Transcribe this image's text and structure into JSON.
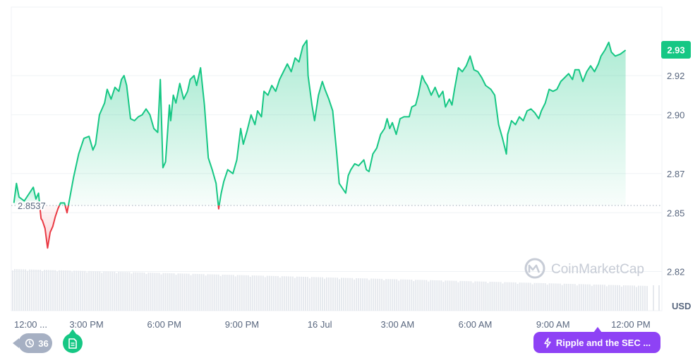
{
  "chart_data": {
    "type": "area",
    "currency_unit": "USD",
    "current_price_label": "2.93",
    "baseline_label": "2.8537",
    "baseline": 2.8537,
    "ylim": [
      2.8,
      2.955
    ],
    "y_ticks": [
      {
        "value": 2.92,
        "label": "2.92"
      },
      {
        "value": 2.9,
        "label": "2.90"
      },
      {
        "value": 2.87,
        "label": "2.87"
      },
      {
        "value": 2.85,
        "label": "2.85"
      },
      {
        "value": 2.82,
        "label": "2.82"
      }
    ],
    "x_ticks": [
      {
        "t": 0.0,
        "label": "12:00 ..."
      },
      {
        "t": 2.8,
        "label": "3:00 PM"
      },
      {
        "t": 5.8,
        "label": "6:00 PM"
      },
      {
        "t": 8.8,
        "label": "9:00 PM"
      },
      {
        "t": 11.8,
        "label": "16 Jul"
      },
      {
        "t": 14.8,
        "label": "3:00 AM"
      },
      {
        "t": 17.8,
        "label": "6:00 AM"
      },
      {
        "t": 20.8,
        "label": "9:00 AM"
      },
      {
        "t": 23.8,
        "label": "12:00 PM"
      }
    ],
    "x_range_hours": [
      -0.1,
      25.0
    ],
    "series": [
      {
        "points": [
          [
            0.0,
            2.855
          ],
          [
            0.1,
            2.865
          ],
          [
            0.2,
            2.858
          ],
          [
            0.4,
            2.856
          ],
          [
            0.6,
            2.86
          ],
          [
            0.75,
            2.863
          ],
          [
            0.85,
            2.857
          ],
          [
            0.95,
            2.86
          ],
          [
            1.05,
            2.847
          ],
          [
            1.1,
            2.846
          ],
          [
            1.2,
            2.842
          ],
          [
            1.3,
            2.832
          ],
          [
            1.4,
            2.84
          ],
          [
            1.5,
            2.843
          ],
          [
            1.6,
            2.848
          ],
          [
            1.7,
            2.852
          ],
          [
            1.8,
            2.855
          ],
          [
            1.95,
            2.855
          ],
          [
            2.05,
            2.85
          ],
          [
            2.15,
            2.857
          ],
          [
            2.3,
            2.868
          ],
          [
            2.5,
            2.88
          ],
          [
            2.7,
            2.888
          ],
          [
            2.9,
            2.889
          ],
          [
            3.05,
            2.882
          ],
          [
            3.15,
            2.885
          ],
          [
            3.3,
            2.9
          ],
          [
            3.5,
            2.906
          ],
          [
            3.6,
            2.913
          ],
          [
            3.75,
            2.908
          ],
          [
            3.9,
            2.914
          ],
          [
            4.05,
            2.912
          ],
          [
            4.15,
            2.918
          ],
          [
            4.25,
            2.92
          ],
          [
            4.35,
            2.915
          ],
          [
            4.5,
            2.898
          ],
          [
            4.65,
            2.897
          ],
          [
            4.8,
            2.899
          ],
          [
            4.95,
            2.9
          ],
          [
            5.1,
            2.903
          ],
          [
            5.25,
            2.9
          ],
          [
            5.4,
            2.893
          ],
          [
            5.55,
            2.891
          ],
          [
            5.65,
            2.918
          ],
          [
            5.75,
            2.873
          ],
          [
            5.85,
            2.876
          ],
          [
            6.0,
            2.905
          ],
          [
            6.05,
            2.897
          ],
          [
            6.15,
            2.91
          ],
          [
            6.25,
            2.906
          ],
          [
            6.4,
            2.916
          ],
          [
            6.55,
            2.908
          ],
          [
            6.7,
            2.912
          ],
          [
            6.8,
            2.918
          ],
          [
            6.95,
            2.92
          ],
          [
            7.05,
            2.915
          ],
          [
            7.2,
            2.924
          ],
          [
            7.35,
            2.905
          ],
          [
            7.5,
            2.878
          ],
          [
            7.65,
            2.872
          ],
          [
            7.8,
            2.865
          ],
          [
            7.9,
            2.852
          ],
          [
            8.0,
            2.86
          ],
          [
            8.1,
            2.866
          ],
          [
            8.25,
            2.872
          ],
          [
            8.45,
            2.87
          ],
          [
            8.6,
            2.877
          ],
          [
            8.75,
            2.893
          ],
          [
            8.85,
            2.885
          ],
          [
            9.0,
            2.892
          ],
          [
            9.15,
            2.9
          ],
          [
            9.3,
            2.895
          ],
          [
            9.4,
            2.902
          ],
          [
            9.55,
            2.899
          ],
          [
            9.65,
            2.912
          ],
          [
            9.8,
            2.91
          ],
          [
            9.95,
            2.915
          ],
          [
            10.1,
            2.912
          ],
          [
            10.25,
            2.918
          ],
          [
            10.4,
            2.922
          ],
          [
            10.55,
            2.926
          ],
          [
            10.7,
            2.922
          ],
          [
            10.85,
            2.929
          ],
          [
            11.0,
            2.927
          ],
          [
            11.15,
            2.935
          ],
          [
            11.3,
            2.938
          ],
          [
            11.35,
            2.92
          ],
          [
            11.5,
            2.905
          ],
          [
            11.6,
            2.897
          ],
          [
            11.75,
            2.91
          ],
          [
            11.9,
            2.917
          ],
          [
            12.0,
            2.913
          ],
          [
            12.15,
            2.908
          ],
          [
            12.3,
            2.902
          ],
          [
            12.45,
            2.881
          ],
          [
            12.55,
            2.865
          ],
          [
            12.7,
            2.862
          ],
          [
            12.8,
            2.86
          ],
          [
            12.9,
            2.869
          ],
          [
            13.0,
            2.872
          ],
          [
            13.15,
            2.875
          ],
          [
            13.3,
            2.874
          ],
          [
            13.5,
            2.877
          ],
          [
            13.6,
            2.872
          ],
          [
            13.7,
            2.871
          ],
          [
            13.85,
            2.88
          ],
          [
            14.0,
            2.883
          ],
          [
            14.15,
            2.89
          ],
          [
            14.3,
            2.893
          ],
          [
            14.4,
            2.898
          ],
          [
            14.5,
            2.893
          ],
          [
            14.6,
            2.896
          ],
          [
            14.75,
            2.89
          ],
          [
            14.9,
            2.898
          ],
          [
            15.05,
            2.899
          ],
          [
            15.25,
            2.899
          ],
          [
            15.35,
            2.904
          ],
          [
            15.5,
            2.905
          ],
          [
            15.6,
            2.91
          ],
          [
            15.75,
            2.92
          ],
          [
            15.85,
            2.917
          ],
          [
            15.95,
            2.915
          ],
          [
            16.1,
            2.91
          ],
          [
            16.25,
            2.914
          ],
          [
            16.4,
            2.909
          ],
          [
            16.55,
            2.912
          ],
          [
            16.65,
            2.904
          ],
          [
            16.8,
            2.908
          ],
          [
            16.9,
            2.905
          ],
          [
            17.0,
            2.913
          ],
          [
            17.15,
            2.924
          ],
          [
            17.3,
            2.922
          ],
          [
            17.45,
            2.925
          ],
          [
            17.6,
            2.93
          ],
          [
            17.75,
            2.923
          ],
          [
            17.9,
            2.922
          ],
          [
            18.05,
            2.919
          ],
          [
            18.2,
            2.915
          ],
          [
            18.4,
            2.913
          ],
          [
            18.55,
            2.91
          ],
          [
            18.7,
            2.895
          ],
          [
            18.85,
            2.888
          ],
          [
            19.0,
            2.88
          ],
          [
            19.05,
            2.89
          ],
          [
            19.2,
            2.897
          ],
          [
            19.35,
            2.895
          ],
          [
            19.5,
            2.899
          ],
          [
            19.65,
            2.897
          ],
          [
            19.8,
            2.902
          ],
          [
            19.95,
            2.903
          ],
          [
            20.1,
            2.901
          ],
          [
            20.25,
            2.898
          ],
          [
            20.35,
            2.902
          ],
          [
            20.5,
            2.906
          ],
          [
            20.65,
            2.913
          ],
          [
            20.8,
            2.912
          ],
          [
            20.95,
            2.913
          ],
          [
            21.1,
            2.917
          ],
          [
            21.25,
            2.919
          ],
          [
            21.4,
            2.921
          ],
          [
            21.55,
            2.918
          ],
          [
            21.65,
            2.923
          ],
          [
            21.8,
            2.923
          ],
          [
            21.95,
            2.917
          ],
          [
            22.1,
            2.922
          ],
          [
            22.25,
            2.925
          ],
          [
            22.4,
            2.922
          ],
          [
            22.55,
            2.926
          ],
          [
            22.65,
            2.93
          ],
          [
            22.8,
            2.933
          ],
          [
            22.95,
            2.937
          ],
          [
            23.05,
            2.932
          ],
          [
            23.2,
            2.93
          ],
          [
            23.4,
            2.931
          ],
          [
            23.6,
            2.933
          ]
        ]
      }
    ],
    "volume_note": "background volume bars",
    "watermark": "CoinMarketCap",
    "colors": {
      "up": "#16c784",
      "down": "#ea3943",
      "grid": "#eff2f5"
    }
  },
  "badges": {
    "events_count": "36",
    "news_label": "Ripple and the SEC ..."
  },
  "icons": {
    "events": "history-clock-icon",
    "document": "document-icon",
    "news": "lightning-icon",
    "watermark": "coinmarketcap-logo-icon"
  }
}
